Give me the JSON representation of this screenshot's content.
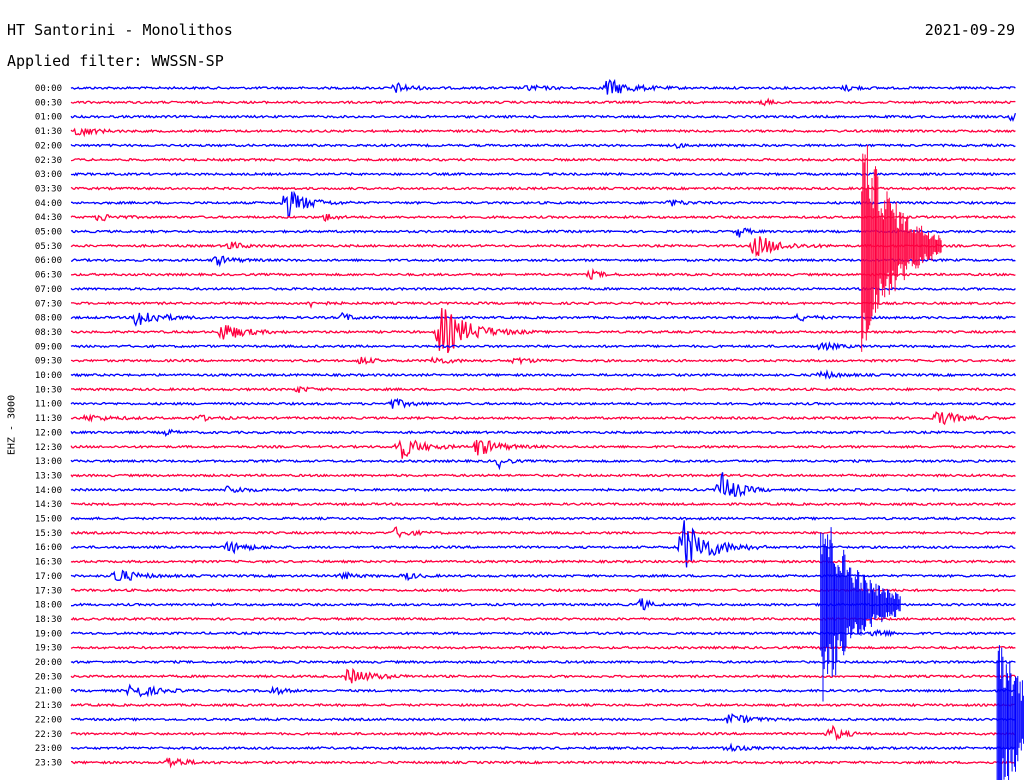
{
  "header": {
    "station": "HT Santorini - Monolithos",
    "date": "2021-09-29",
    "filter": "Applied filter: WWSSN-SP",
    "channel": "EHZ - 3000"
  },
  "colors": {
    "even_row": "#0000ff",
    "odd_row": "#ff0040",
    "background": "#ffffff"
  },
  "chart_data": {
    "type": "line",
    "title": "HT Santorini - Monolithos",
    "ylabel": "EHZ - 3000",
    "xlabel": "",
    "x_range_minutes": [
      0,
      30
    ],
    "row_interval_minutes": 30,
    "y_tick_labels": [
      "00:00",
      "00:30",
      "01:00",
      "01:30",
      "02:00",
      "02:30",
      "03:00",
      "03:30",
      "04:00",
      "04:30",
      "05:00",
      "05:30",
      "06:00",
      "06:30",
      "07:00",
      "07:30",
      "08:00",
      "08:30",
      "09:00",
      "09:30",
      "10:00",
      "10:30",
      "11:00",
      "11:30",
      "12:00",
      "12:30",
      "13:00",
      "13:30",
      "14:00",
      "14:30",
      "15:00",
      "15:30",
      "16:00",
      "16:30",
      "17:00",
      "17:30",
      "18:00",
      "18:30",
      "19:00",
      "19:30",
      "20:00",
      "20:30",
      "21:00",
      "21:30",
      "22:00",
      "22:30",
      "23:00",
      "23:30"
    ],
    "events": [
      {
        "row": 0,
        "minute": 10.3,
        "amp": 5,
        "dur": 0.8
      },
      {
        "row": 0,
        "minute": 14.5,
        "amp": 3,
        "dur": 0.8
      },
      {
        "row": 0,
        "minute": 17.0,
        "amp": 9,
        "dur": 1.2
      },
      {
        "row": 0,
        "minute": 24.6,
        "amp": 3,
        "dur": 0.6
      },
      {
        "row": 1,
        "minute": 22.0,
        "amp": 3,
        "dur": 0.5
      },
      {
        "row": 2,
        "minute": 29.9,
        "amp": 5,
        "dur": 0.3
      },
      {
        "row": 3,
        "minute": 0.2,
        "amp": 6,
        "dur": 0.8
      },
      {
        "row": 4,
        "minute": 19.2,
        "amp": 2,
        "dur": 0.6
      },
      {
        "row": 8,
        "minute": 6.8,
        "amp": 16,
        "dur": 1.0
      },
      {
        "row": 8,
        "minute": 19.0,
        "amp": 3,
        "dur": 0.8
      },
      {
        "row": 9,
        "minute": 0.9,
        "amp": 4,
        "dur": 0.8
      },
      {
        "row": 9,
        "minute": 8.1,
        "amp": 4,
        "dur": 0.5
      },
      {
        "row": 10,
        "minute": 21.2,
        "amp": 6,
        "dur": 0.4
      },
      {
        "row": 11,
        "minute": 21.7,
        "amp": 12,
        "dur": 1.2
      },
      {
        "row": 11,
        "minute": 5.0,
        "amp": 4,
        "dur": 0.8
      },
      {
        "row": 12,
        "minute": 4.6,
        "amp": 5,
        "dur": 0.8
      },
      {
        "row": 13,
        "minute": 16.5,
        "amp": 4,
        "dur": 0.6
      },
      {
        "row": 15,
        "minute": 7.6,
        "amp": 3,
        "dur": 0.6
      },
      {
        "row": 16,
        "minute": 2.1,
        "amp": 11,
        "dur": 1.0
      },
      {
        "row": 16,
        "minute": 8.6,
        "amp": 4,
        "dur": 0.6
      },
      {
        "row": 16,
        "minute": 23.1,
        "amp": 3,
        "dur": 0.8
      },
      {
        "row": 17,
        "minute": 4.8,
        "amp": 10,
        "dur": 1.0
      },
      {
        "row": 17,
        "minute": 11.7,
        "amp": 28,
        "dur": 1.4
      },
      {
        "row": 18,
        "minute": 23.8,
        "amp": 4,
        "dur": 0.8
      },
      {
        "row": 19,
        "minute": 9.2,
        "amp": 4,
        "dur": 0.6
      },
      {
        "row": 19,
        "minute": 11.5,
        "amp": 4,
        "dur": 0.8
      },
      {
        "row": 19,
        "minute": 14.1,
        "amp": 3,
        "dur": 0.8
      },
      {
        "row": 20,
        "minute": 23.8,
        "amp": 4,
        "dur": 0.8
      },
      {
        "row": 21,
        "minute": 7.2,
        "amp": 3,
        "dur": 0.6
      },
      {
        "row": 22,
        "minute": 10.2,
        "amp": 5,
        "dur": 0.8
      },
      {
        "row": 23,
        "minute": 0.5,
        "amp": 3,
        "dur": 1.2
      },
      {
        "row": 23,
        "minute": 4.0,
        "amp": 3,
        "dur": 0.8
      },
      {
        "row": 23,
        "minute": 27.5,
        "amp": 8,
        "dur": 1.0
      },
      {
        "row": 24,
        "minute": 3.0,
        "amp": 3,
        "dur": 0.5
      },
      {
        "row": 25,
        "minute": 10.4,
        "amp": 14,
        "dur": 1.0
      },
      {
        "row": 25,
        "minute": 12.9,
        "amp": 10,
        "dur": 1.0
      },
      {
        "row": 26,
        "minute": 13.6,
        "amp": 6,
        "dur": 0.4
      },
      {
        "row": 28,
        "minute": 5.0,
        "amp": 4,
        "dur": 0.8
      },
      {
        "row": 28,
        "minute": 20.6,
        "amp": 20,
        "dur": 0.8
      },
      {
        "row": 31,
        "minute": 10.3,
        "amp": 5,
        "dur": 0.8
      },
      {
        "row": 32,
        "minute": 5.0,
        "amp": 6,
        "dur": 1.0
      },
      {
        "row": 32,
        "minute": 19.4,
        "amp": 30,
        "dur": 1.3
      },
      {
        "row": 34,
        "minute": 1.4,
        "amp": 8,
        "dur": 1.0
      },
      {
        "row": 34,
        "minute": 8.6,
        "amp": 4,
        "dur": 0.6
      },
      {
        "row": 34,
        "minute": 10.6,
        "amp": 4,
        "dur": 0.6
      },
      {
        "row": 36,
        "minute": 18.1,
        "amp": 7,
        "dur": 0.4
      },
      {
        "row": 38,
        "minute": 25.5,
        "amp": 5,
        "dur": 0.6
      },
      {
        "row": 41,
        "minute": 8.8,
        "amp": 8,
        "dur": 1.2
      },
      {
        "row": 42,
        "minute": 1.9,
        "amp": 9,
        "dur": 1.0
      },
      {
        "row": 42,
        "minute": 6.4,
        "amp": 4,
        "dur": 0.6
      },
      {
        "row": 44,
        "minute": 20.9,
        "amp": 6,
        "dur": 1.0
      },
      {
        "row": 45,
        "minute": 24.1,
        "amp": 9,
        "dur": 0.6
      },
      {
        "row": 46,
        "minute": 20.8,
        "amp": 4,
        "dur": 0.8
      },
      {
        "row": 47,
        "minute": 3.1,
        "amp": 6,
        "dur": 0.8
      }
    ],
    "major_events": [
      {
        "row": 11,
        "minute": 25.1,
        "peak": 120,
        "dur": 1.6,
        "color_row": 23
      },
      {
        "row": 36,
        "minute": 23.8,
        "peak": 110,
        "dur": 1.6,
        "color_row": 36
      },
      {
        "row": 44,
        "minute": 29.4,
        "peak": 90,
        "dur": 1.6,
        "color_row": 44
      }
    ]
  }
}
